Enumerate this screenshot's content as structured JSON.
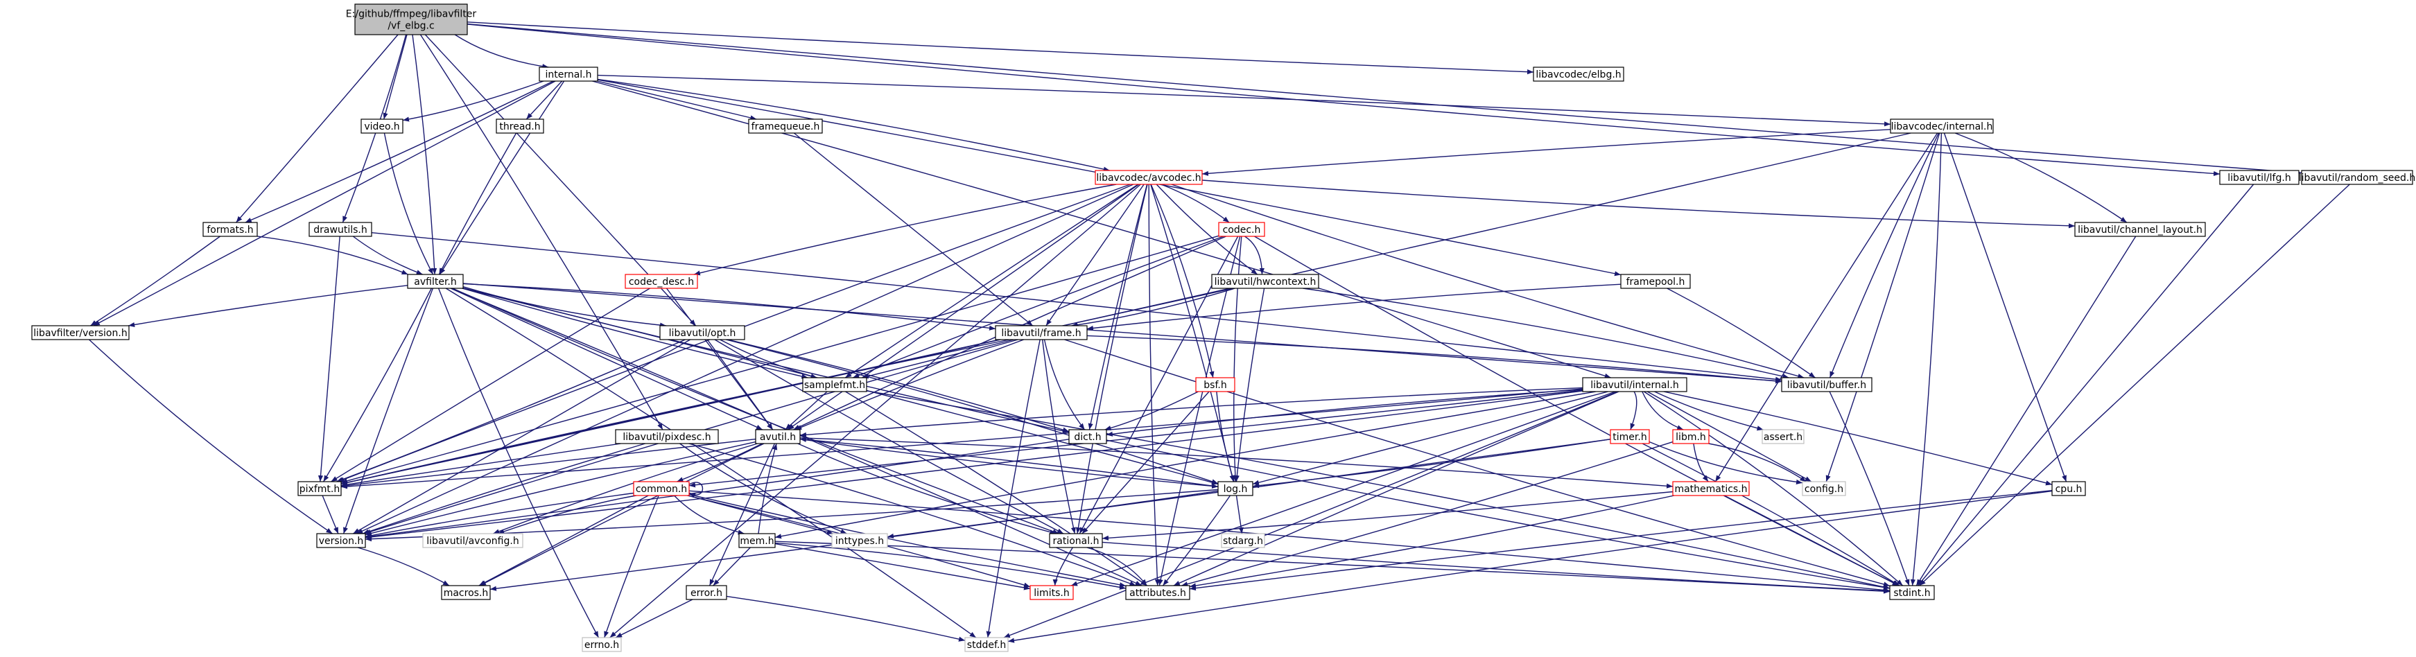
{
  "nodes": [
    {
      "id": "root",
      "lines": [
        "E:/github/ffmpeg/libavfilter",
        "/vf_elbg.c"
      ],
      "style": "root"
    },
    {
      "id": "internal_h",
      "lines": [
        "internal.h"
      ]
    },
    {
      "id": "lavc_elbg",
      "lines": [
        "libavcodec/elbg.h"
      ]
    },
    {
      "id": "video_h",
      "lines": [
        "video.h"
      ]
    },
    {
      "id": "thread_h",
      "lines": [
        "thread.h"
      ]
    },
    {
      "id": "framequeue_h",
      "lines": [
        "framequeue.h"
      ]
    },
    {
      "id": "lavc_internal",
      "lines": [
        "libavcodec/internal.h"
      ]
    },
    {
      "id": "lfg_h",
      "lines": [
        "libavutil/lfg.h"
      ]
    },
    {
      "id": "random_seed",
      "lines": [
        "libavutil/random_seed.h"
      ]
    },
    {
      "id": "avcodec_h",
      "lines": [
        "libavcodec/avcodec.h"
      ],
      "style": "red"
    },
    {
      "id": "formats_h",
      "lines": [
        "formats.h"
      ]
    },
    {
      "id": "drawutils_h",
      "lines": [
        "drawutils.h"
      ]
    },
    {
      "id": "codec_h",
      "lines": [
        "codec.h"
      ],
      "style": "red"
    },
    {
      "id": "channel_layout",
      "lines": [
        "libavutil/channel_layout.h"
      ]
    },
    {
      "id": "avfilter_h",
      "lines": [
        "avfilter.h"
      ]
    },
    {
      "id": "codec_desc",
      "lines": [
        "codec_desc.h"
      ],
      "style": "red"
    },
    {
      "id": "hwcontext",
      "lines": [
        "libavutil/hwcontext.h"
      ]
    },
    {
      "id": "framepool",
      "lines": [
        "framepool.h"
      ]
    },
    {
      "id": "lavfi_version",
      "lines": [
        "libavfilter/version.h"
      ]
    },
    {
      "id": "opt_h",
      "lines": [
        "libavutil/opt.h"
      ]
    },
    {
      "id": "frame_h",
      "lines": [
        "libavutil/frame.h"
      ]
    },
    {
      "id": "samplefmt",
      "lines": [
        "samplefmt.h"
      ]
    },
    {
      "id": "bsf_h",
      "lines": [
        "bsf.h"
      ],
      "style": "red"
    },
    {
      "id": "buffer_h",
      "lines": [
        "libavutil/buffer.h"
      ]
    },
    {
      "id": "lavu_internal",
      "lines": [
        "libavutil/internal.h"
      ]
    },
    {
      "id": "dict_h",
      "lines": [
        "dict.h"
      ]
    },
    {
      "id": "pixdesc",
      "lines": [
        "libavutil/pixdesc.h"
      ]
    },
    {
      "id": "avutil_h",
      "lines": [
        "avutil.h"
      ]
    },
    {
      "id": "timer_h",
      "lines": [
        "timer.h"
      ],
      "style": "red"
    },
    {
      "id": "libm_h",
      "lines": [
        "libm.h"
      ],
      "style": "red"
    },
    {
      "id": "assert_h",
      "lines": [
        "assert.h"
      ],
      "style": "grey"
    },
    {
      "id": "pixfmt",
      "lines": [
        "pixfmt.h"
      ]
    },
    {
      "id": "log_h",
      "lines": [
        "log.h"
      ]
    },
    {
      "id": "config_h",
      "lines": [
        "config.h"
      ],
      "style": "grey"
    },
    {
      "id": "cpu_h",
      "lines": [
        "cpu.h"
      ]
    },
    {
      "id": "common_h",
      "lines": [
        "common.h"
      ],
      "style": "red"
    },
    {
      "id": "mathematics",
      "lines": [
        "mathematics.h"
      ],
      "style": "red"
    },
    {
      "id": "version_h",
      "lines": [
        "version.h"
      ]
    },
    {
      "id": "avconfig",
      "lines": [
        "libavutil/avconfig.h"
      ],
      "style": "grey"
    },
    {
      "id": "inttypes",
      "lines": [
        "inttypes.h"
      ],
      "style": "grey"
    },
    {
      "id": "mem_h",
      "lines": [
        "mem.h"
      ]
    },
    {
      "id": "stdarg",
      "lines": [
        "stdarg.h"
      ],
      "style": "grey"
    },
    {
      "id": "rational_h",
      "lines": [
        "rational.h"
      ]
    },
    {
      "id": "macros_h",
      "lines": [
        "macros.h"
      ]
    },
    {
      "id": "error_h",
      "lines": [
        "error.h"
      ]
    },
    {
      "id": "limits_h",
      "lines": [
        "limits.h"
      ],
      "style": "red"
    },
    {
      "id": "attributes",
      "lines": [
        "attributes.h"
      ]
    },
    {
      "id": "stdint",
      "lines": [
        "stdint.h"
      ]
    },
    {
      "id": "errno_h",
      "lines": [
        "errno.h"
      ],
      "style": "grey"
    },
    {
      "id": "stddef",
      "lines": [
        "stddef.h"
      ],
      "style": "grey"
    }
  ],
  "edges": [
    [
      "root",
      "internal_h"
    ],
    [
      "root",
      "lavc_elbg"
    ],
    [
      "root",
      "video_h"
    ],
    [
      "root",
      "avfilter_h"
    ],
    [
      "root",
      "drawutils_h"
    ],
    [
      "root",
      "lfg_h"
    ],
    [
      "root",
      "random_seed"
    ],
    [
      "root",
      "opt_h"
    ],
    [
      "root",
      "pixdesc"
    ],
    [
      "root",
      "formats_h"
    ],
    [
      "internal_h",
      "video_h"
    ],
    [
      "internal_h",
      "thread_h"
    ],
    [
      "internal_h",
      "framequeue_h"
    ],
    [
      "internal_h",
      "lavc_internal"
    ],
    [
      "internal_h",
      "avcodec_h"
    ],
    [
      "internal_h",
      "formats_h"
    ],
    [
      "internal_h",
      "avfilter_h"
    ],
    [
      "internal_h",
      "lavfi_version"
    ],
    [
      "internal_h",
      "framepool"
    ],
    [
      "internal_h",
      "lavu_internal"
    ],
    [
      "video_h",
      "avfilter_h"
    ],
    [
      "thread_h",
      "avfilter_h"
    ],
    [
      "framequeue_h",
      "frame_h"
    ],
    [
      "lavc_internal",
      "avcodec_h"
    ],
    [
      "lavc_internal",
      "channel_layout"
    ],
    [
      "lavc_internal",
      "buffer_h"
    ],
    [
      "lavc_internal",
      "mathematics"
    ],
    [
      "lavc_internal",
      "cpu_h"
    ],
    [
      "lavc_internal",
      "config_h"
    ],
    [
      "lavc_internal",
      "stdint"
    ],
    [
      "lavc_internal",
      "pixfmt"
    ],
    [
      "lfg_h",
      "stdint"
    ],
    [
      "random_seed",
      "stdint"
    ],
    [
      "avcodec_h",
      "codec_h"
    ],
    [
      "avcodec_h",
      "codec_desc"
    ],
    [
      "avcodec_h",
      "channel_layout"
    ],
    [
      "avcodec_h",
      "hwcontext"
    ],
    [
      "avcodec_h",
      "frame_h"
    ],
    [
      "avcodec_h",
      "samplefmt"
    ],
    [
      "avcodec_h",
      "bsf_h"
    ],
    [
      "avcodec_h",
      "buffer_h"
    ],
    [
      "avcodec_h",
      "dict_h"
    ],
    [
      "avcodec_h",
      "avutil_h"
    ],
    [
      "avcodec_h",
      "log_h"
    ],
    [
      "avcodec_h",
      "pixfmt"
    ],
    [
      "avcodec_h",
      "rational_h"
    ],
    [
      "avcodec_h",
      "attributes"
    ],
    [
      "avcodec_h",
      "errno_h"
    ],
    [
      "avcodec_h",
      "version_h"
    ],
    [
      "formats_h",
      "avfilter_h"
    ],
    [
      "formats_h",
      "lavfi_version"
    ],
    [
      "drawutils_h",
      "avfilter_h"
    ],
    [
      "drawutils_h",
      "pixfmt"
    ],
    [
      "drawutils_h",
      "buffer_h"
    ],
    [
      "codec_h",
      "hwcontext"
    ],
    [
      "codec_h",
      "log_h"
    ],
    [
      "codec_h",
      "pixfmt"
    ],
    [
      "codec_h",
      "rational_h"
    ],
    [
      "codec_h",
      "samplefmt"
    ],
    [
      "codec_h",
      "avutil_h"
    ],
    [
      "codec_h",
      "stdint"
    ],
    [
      "codec_h",
      "attributes"
    ],
    [
      "channel_layout",
      "stdint"
    ],
    [
      "avfilter_h",
      "lavfi_version"
    ],
    [
      "avfilter_h",
      "frame_h"
    ],
    [
      "avfilter_h",
      "opt_h"
    ],
    [
      "avfilter_h",
      "dict_h"
    ],
    [
      "avfilter_h",
      "avutil_h"
    ],
    [
      "avfilter_h",
      "log_h"
    ],
    [
      "avfilter_h",
      "pixfmt"
    ],
    [
      "avfilter_h",
      "rational_h"
    ],
    [
      "avfilter_h",
      "samplefmt"
    ],
    [
      "avfilter_h",
      "buffer_h"
    ],
    [
      "avfilter_h",
      "attributes"
    ],
    [
      "avfilter_h",
      "stddef"
    ],
    [
      "avfilter_h",
      "errno_h"
    ],
    [
      "avfilter_h",
      "version_h"
    ],
    [
      "codec_desc",
      "avutil_h"
    ],
    [
      "codec_desc",
      "pixfmt"
    ],
    [
      "hwcontext",
      "buffer_h"
    ],
    [
      "hwcontext",
      "frame_h"
    ],
    [
      "hwcontext",
      "log_h"
    ],
    [
      "hwcontext",
      "pixfmt"
    ],
    [
      "framepool",
      "buffer_h"
    ],
    [
      "framepool",
      "frame_h"
    ],
    [
      "lavfi_version",
      "version_h"
    ],
    [
      "opt_h",
      "rational_h"
    ],
    [
      "opt_h",
      "avutil_h"
    ],
    [
      "opt_h",
      "dict_h"
    ],
    [
      "opt_h",
      "log_h"
    ],
    [
      "opt_h",
      "pixfmt"
    ],
    [
      "opt_h",
      "samplefmt"
    ],
    [
      "opt_h",
      "version_h"
    ],
    [
      "frame_h",
      "avutil_h"
    ],
    [
      "frame_h",
      "buffer_h"
    ],
    [
      "frame_h",
      "dict_h"
    ],
    [
      "frame_h",
      "rational_h"
    ],
    [
      "frame_h",
      "samplefmt"
    ],
    [
      "frame_h",
      "pixfmt"
    ],
    [
      "frame_h",
      "version_h"
    ],
    [
      "frame_h",
      "stdint"
    ],
    [
      "frame_h",
      "stddef"
    ],
    [
      "samplefmt",
      "avutil_h"
    ],
    [
      "samplefmt",
      "attributes"
    ],
    [
      "samplefmt",
      "stdint"
    ],
    [
      "bsf_h",
      "dict_h"
    ],
    [
      "bsf_h",
      "log_h"
    ],
    [
      "bsf_h",
      "rational_h"
    ],
    [
      "buffer_h",
      "stdint"
    ],
    [
      "lavu_internal",
      "timer_h"
    ],
    [
      "lavu_internal",
      "libm_h"
    ],
    [
      "lavu_internal",
      "assert_h"
    ],
    [
      "lavu_internal",
      "config_h"
    ],
    [
      "lavu_internal",
      "cpu_h"
    ],
    [
      "lavu_internal",
      "dict_h"
    ],
    [
      "lavu_internal",
      "pixfmt"
    ],
    [
      "lavu_internal",
      "version_h"
    ],
    [
      "lavu_internal",
      "common_h"
    ],
    [
      "lavu_internal",
      "attributes"
    ],
    [
      "lavu_internal",
      "stdint"
    ],
    [
      "lavu_internal",
      "stddef"
    ],
    [
      "lavu_internal",
      "limits_h"
    ],
    [
      "lavu_internal",
      "log_h"
    ],
    [
      "lavu_internal",
      "mem_h"
    ],
    [
      "lavu_internal",
      "avutil_h"
    ],
    [
      "dict_h",
      "stdint"
    ],
    [
      "dict_h",
      "version_h"
    ],
    [
      "pixdesc",
      "pixfmt"
    ],
    [
      "pixdesc",
      "version_h"
    ],
    [
      "pixdesc",
      "attributes"
    ],
    [
      "pixdesc",
      "inttypes"
    ],
    [
      "avutil_h",
      "common_h"
    ],
    [
      "avutil_h",
      "error_h"
    ],
    [
      "avutil_h",
      "version_h"
    ],
    [
      "avutil_h",
      "mathematics"
    ],
    [
      "avutil_h",
      "rational_h"
    ],
    [
      "avutil_h",
      "log_h"
    ],
    [
      "avutil_h",
      "pixfmt"
    ],
    [
      "avutil_h",
      "macros_h"
    ],
    [
      "avutil_h",
      "avconfig"
    ],
    [
      "timer_h",
      "config_h"
    ],
    [
      "timer_h",
      "log_h"
    ],
    [
      "timer_h",
      "inttypes"
    ],
    [
      "timer_h",
      "stdint"
    ],
    [
      "libm_h",
      "config_h"
    ],
    [
      "libm_h",
      "attributes"
    ],
    [
      "libm_h",
      "mathematics"
    ],
    [
      "pixfmt",
      "version_h"
    ],
    [
      "log_h",
      "avutil_h"
    ],
    [
      "log_h",
      "attributes"
    ],
    [
      "log_h",
      "version_h"
    ],
    [
      "log_h",
      "macros_h"
    ],
    [
      "log_h",
      "stdarg"
    ],
    [
      "cpu_h",
      "attributes"
    ],
    [
      "cpu_h",
      "stddef"
    ],
    [
      "common_h",
      "common_h"
    ],
    [
      "common_h",
      "attributes"
    ],
    [
      "common_h",
      "macros_h"
    ],
    [
      "common_h",
      "version_h"
    ],
    [
      "common_h",
      "avconfig"
    ],
    [
      "common_h",
      "mem_h"
    ],
    [
      "common_h",
      "errno_h"
    ],
    [
      "common_h",
      "inttypes"
    ],
    [
      "common_h",
      "limits_h"
    ],
    [
      "common_h",
      "stdint"
    ],
    [
      "mathematics",
      "attributes"
    ],
    [
      "mathematics",
      "rational_h"
    ],
    [
      "mathematics",
      "stdint"
    ],
    [
      "version_h",
      "macros_h"
    ],
    [
      "mem_h",
      "attributes"
    ],
    [
      "mem_h",
      "error_h"
    ],
    [
      "mem_h",
      "avutil_h"
    ],
    [
      "mem_h",
      "limits_h"
    ],
    [
      "mem_h",
      "stdint"
    ],
    [
      "rational_h",
      "attributes"
    ],
    [
      "rational_h",
      "limits_h"
    ],
    [
      "rational_h",
      "stdint"
    ],
    [
      "error_h",
      "errno_h"
    ],
    [
      "error_h",
      "stddef"
    ]
  ]
}
